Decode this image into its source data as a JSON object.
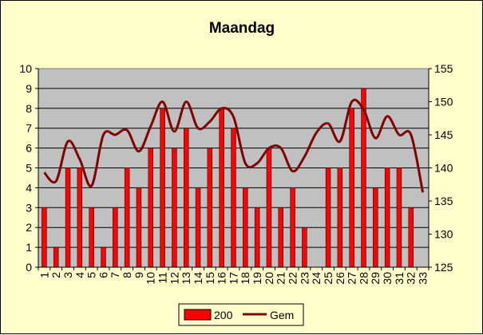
{
  "chart_data": {
    "type": "bar",
    "title": "Maandag",
    "categories": [
      "1",
      "2",
      "3",
      "4",
      "5",
      "6",
      "7",
      "8",
      "9",
      "10",
      "11",
      "12",
      "13",
      "14",
      "15",
      "16",
      "17",
      "18",
      "19",
      "20",
      "21",
      "22",
      "23",
      "24",
      "25",
      "26",
      "27",
      "28",
      "29",
      "30",
      "31",
      "32",
      "33"
    ],
    "y_left": {
      "min": 0,
      "max": 10,
      "step": 1
    },
    "y_right": {
      "min": 125,
      "max": 155,
      "step": 5
    },
    "grid": true,
    "legend_position": "bottom",
    "plot_background": "#c0c0c0",
    "series": [
      {
        "name": "200",
        "kind": "bar",
        "axis": "left",
        "color": "#ff0000",
        "values": [
          3,
          1,
          5,
          5,
          3,
          1,
          3,
          5,
          4,
          6,
          8,
          6,
          7,
          4,
          6,
          8,
          7,
          4,
          3,
          6,
          3,
          4,
          2,
          0,
          5,
          5,
          8,
          9,
          4,
          5,
          5,
          3,
          0
        ]
      },
      {
        "name": "Gem",
        "kind": "line",
        "axis": "right",
        "color": "#800000",
        "values": [
          139.3,
          138,
          144,
          141.3,
          137.3,
          145,
          145,
          145.7,
          142.5,
          146.3,
          150,
          145.5,
          150,
          146,
          147,
          149,
          147.7,
          140.7,
          140.7,
          143,
          143,
          139.5,
          141.7,
          145.3,
          146.7,
          144,
          150,
          148.8,
          144.5,
          147.8,
          145,
          145,
          136.3
        ]
      }
    ]
  }
}
